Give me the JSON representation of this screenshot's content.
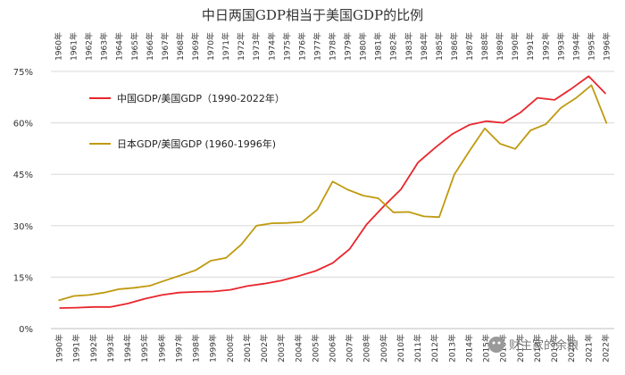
{
  "chart_data": {
    "type": "line",
    "title": "中日两国GDP相当于美国GDP的比例",
    "ylim": [
      0,
      0.75
    ],
    "y_ticks": [
      {
        "value": 0,
        "label": "0%"
      },
      {
        "value": 0.15,
        "label": "15%"
      },
      {
        "value": 0.3,
        "label": "30%"
      },
      {
        "value": 0.45,
        "label": "45%"
      },
      {
        "value": 0.6,
        "label": "60%"
      },
      {
        "value": 0.75,
        "label": "75%"
      }
    ],
    "grid": "horizontal",
    "legend_position": "top-left",
    "x_bottom": [
      "1990年",
      "1991年",
      "1992年",
      "1993年",
      "1994年",
      "1995年",
      "1996年",
      "1997年",
      "1998年",
      "1999年",
      "2000年",
      "2001年",
      "2002年",
      "2003年",
      "2004年",
      "2005年",
      "2006年",
      "2007年",
      "2008年",
      "2009年",
      "2010年",
      "2011年",
      "2012年",
      "2013年",
      "2014年",
      "2015年",
      "2016年",
      "2017年",
      "2018年",
      "2019年",
      "2020年",
      "2021年",
      "2022年"
    ],
    "x_top": [
      "1960年",
      "1961年",
      "1962年",
      "1963年",
      "1964年",
      "1965年",
      "1966年",
      "1967年",
      "1968年",
      "1969年",
      "1970年",
      "1971年",
      "1972年",
      "1973年",
      "1974年",
      "1975年",
      "1976年",
      "1977年",
      "1978年",
      "1979年",
      "1980年",
      "1981年",
      "1982年",
      "1983年",
      "1984年",
      "1985年",
      "1986年",
      "1987年",
      "1988年",
      "1989年",
      "1990年",
      "1991年",
      "1992年",
      "1993年",
      "1994年",
      "1995年",
      "1996年"
    ],
    "series": [
      {
        "name": "中国GDP/美国GDP（1990-2022年）",
        "axis": "bottom",
        "color": "#e8262c",
        "values": [
          0.06,
          0.061,
          0.063,
          0.063,
          0.073,
          0.087,
          0.098,
          0.105,
          0.107,
          0.108,
          0.113,
          0.124,
          0.131,
          0.14,
          0.153,
          0.168,
          0.191,
          0.232,
          0.304,
          0.357,
          0.406,
          0.484,
          0.527,
          0.567,
          0.594,
          0.605,
          0.6,
          0.63,
          0.673,
          0.667,
          0.7,
          0.736,
          0.685
        ]
      },
      {
        "name": "日本GDP/美国GDP (1960-1996年)",
        "axis": "top",
        "color": "#bf9a0f",
        "values": [
          0.082,
          0.095,
          0.098,
          0.105,
          0.115,
          0.119,
          0.125,
          0.14,
          0.155,
          0.17,
          0.198,
          0.206,
          0.245,
          0.3,
          0.307,
          0.308,
          0.311,
          0.347,
          0.429,
          0.405,
          0.388,
          0.38,
          0.339,
          0.34,
          0.327,
          0.325,
          0.45,
          0.519,
          0.584,
          0.539,
          0.524,
          0.578,
          0.596,
          0.644,
          0.673,
          0.71,
          0.598
        ]
      }
    ]
  },
  "watermark": {
    "icon": "wechat-icon",
    "text": "财主家的余粮"
  }
}
